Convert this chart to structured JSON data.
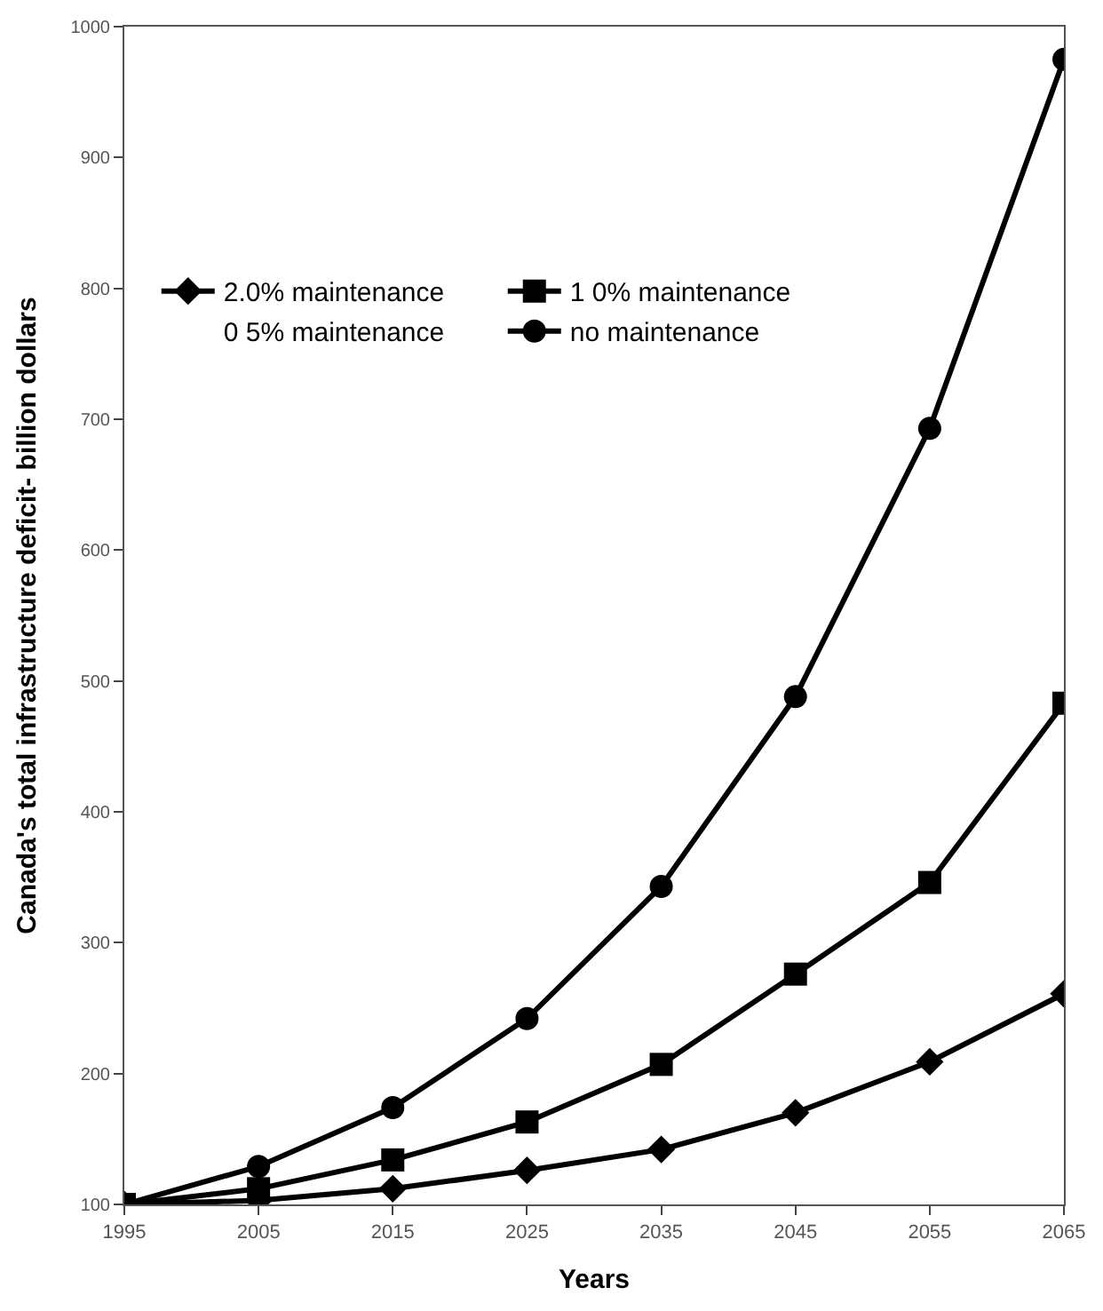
{
  "chart_data": {
    "type": "line",
    "xlabel": "Years",
    "ylabel": "Canada's total infrastructure deficit- billion dollars",
    "x": [
      1995,
      2005,
      2015,
      2025,
      2035,
      2045,
      2055,
      2065
    ],
    "series": [
      {
        "name": "2.0% maintenance",
        "color": "#000000",
        "marker": "diamond",
        "values": [
          100,
          103,
          112,
          126,
          142,
          170,
          209,
          261
        ]
      },
      {
        "name": "1 0% maintenance",
        "color": "#000000",
        "marker": "square",
        "values": [
          100,
          112,
          134,
          163,
          207,
          276,
          346,
          483
        ]
      },
      {
        "name": "0 5% maintenance",
        "marker": "none",
        "values": [
          null,
          null,
          null,
          null,
          null,
          null,
          null,
          null
        ]
      },
      {
        "name": "no maintenance",
        "color": "#000000",
        "marker": "circle",
        "values": [
          100,
          129,
          174,
          242,
          343,
          488,
          693,
          975
        ]
      }
    ],
    "xlim": [
      1995,
      2065
    ],
    "xticks": [
      1995,
      2005,
      2015,
      2025,
      2035,
      2045,
      2055,
      2065
    ],
    "ylim": [
      100,
      1000
    ],
    "yticks": [
      100,
      200,
      300,
      400,
      500,
      600,
      700,
      800,
      900,
      1000
    ],
    "legend": "top left",
    "line_style": "solid"
  }
}
